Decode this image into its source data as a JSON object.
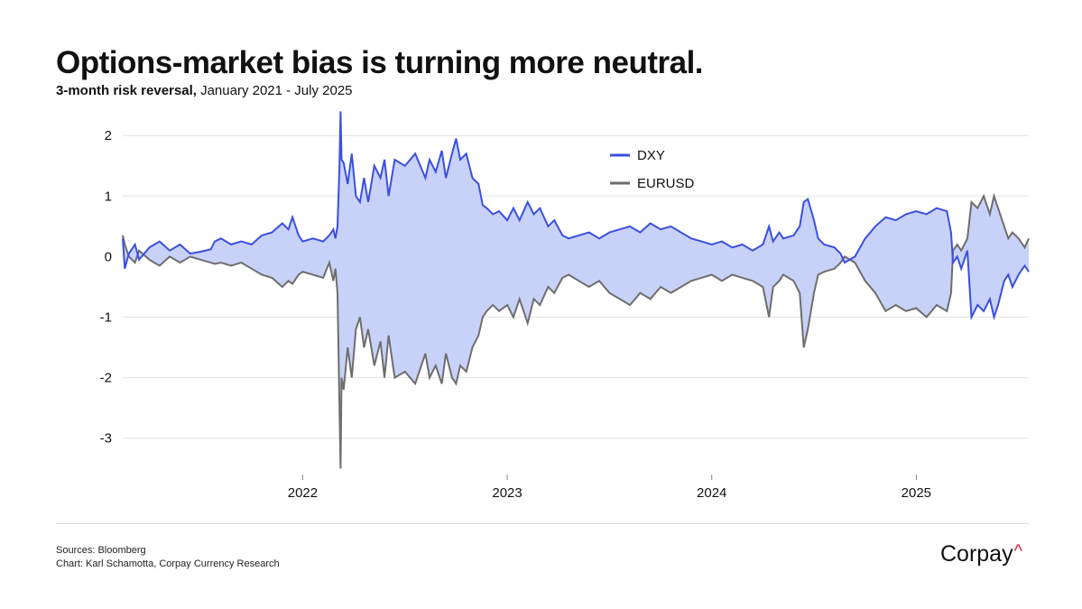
{
  "header": {
    "title": "Options-market bias is turning more neutral.",
    "subtitle_bold": "3-month risk reversal,",
    "subtitle_rest": " January 2021 - July 2025"
  },
  "footer": {
    "sources": "Sources: Bloomberg",
    "credit": "Chart: Karl Schamotta, Corpay Currency Research"
  },
  "logo": {
    "text": "Corpay",
    "mark": "^"
  },
  "colors": {
    "dxy": "#3b4fe0",
    "eurusd": "#6e6e6e",
    "fill": "#c8d2f8",
    "grid": "#e3e3e3"
  },
  "chart_data": {
    "type": "line",
    "title": "Options-market bias is turning more neutral.",
    "subtitle": "3-month risk reversal, January 2021 - July 2025",
    "xlabel": "",
    "ylabel": "",
    "xlim": [
      2021.12,
      2025.55
    ],
    "ylim": [
      -3.6,
      2.45
    ],
    "yticks": [
      2,
      1,
      0,
      -1,
      -2,
      -3
    ],
    "ytick_labels": [
      "2",
      "1",
      "0",
      "-1",
      "-2",
      "-3"
    ],
    "xticks": [
      2022,
      2023,
      2024,
      2025
    ],
    "xtick_labels": [
      "2022",
      "2023",
      "2024",
      "2025"
    ],
    "legend": {
      "position": "top-center",
      "entries": [
        "DXY",
        "EURUSD"
      ]
    },
    "shaded_between_series": true,
    "series": [
      {
        "name": "DXY",
        "points": [
          [
            2021.12,
            0.3
          ],
          [
            2021.13,
            -0.2
          ],
          [
            2021.15,
            0.05
          ],
          [
            2021.18,
            0.2
          ],
          [
            2021.2,
            -0.05
          ],
          [
            2021.25,
            0.15
          ],
          [
            2021.3,
            0.25
          ],
          [
            2021.35,
            0.1
          ],
          [
            2021.4,
            0.2
          ],
          [
            2021.45,
            0.05
          ],
          [
            2021.5,
            0.08
          ],
          [
            2021.55,
            0.12
          ],
          [
            2021.57,
            0.25
          ],
          [
            2021.6,
            0.3
          ],
          [
            2021.65,
            0.2
          ],
          [
            2021.7,
            0.25
          ],
          [
            2021.75,
            0.2
          ],
          [
            2021.8,
            0.35
          ],
          [
            2021.85,
            0.4
          ],
          [
            2021.9,
            0.55
          ],
          [
            2021.93,
            0.45
          ],
          [
            2021.95,
            0.65
          ],
          [
            2021.98,
            0.35
          ],
          [
            2022.0,
            0.25
          ],
          [
            2022.05,
            0.3
          ],
          [
            2022.1,
            0.25
          ],
          [
            2022.13,
            0.35
          ],
          [
            2022.15,
            0.45
          ],
          [
            2022.16,
            0.3
          ],
          [
            2022.17,
            0.5
          ],
          [
            2022.18,
            1.5
          ],
          [
            2022.185,
            2.4
          ],
          [
            2022.19,
            1.6
          ],
          [
            2022.2,
            1.55
          ],
          [
            2022.22,
            1.2
          ],
          [
            2022.24,
            1.7
          ],
          [
            2022.26,
            1.0
          ],
          [
            2022.28,
            0.9
          ],
          [
            2022.3,
            1.3
          ],
          [
            2022.32,
            0.9
          ],
          [
            2022.35,
            1.5
          ],
          [
            2022.38,
            1.3
          ],
          [
            2022.4,
            1.6
          ],
          [
            2022.42,
            1.0
          ],
          [
            2022.45,
            1.6
          ],
          [
            2022.5,
            1.5
          ],
          [
            2022.55,
            1.7
          ],
          [
            2022.6,
            1.3
          ],
          [
            2022.62,
            1.6
          ],
          [
            2022.65,
            1.4
          ],
          [
            2022.68,
            1.75
          ],
          [
            2022.7,
            1.3
          ],
          [
            2022.73,
            1.7
          ],
          [
            2022.75,
            1.95
          ],
          [
            2022.77,
            1.6
          ],
          [
            2022.8,
            1.7
          ],
          [
            2022.83,
            1.3
          ],
          [
            2022.86,
            1.2
          ],
          [
            2022.88,
            0.85
          ],
          [
            2022.9,
            0.8
          ],
          [
            2022.93,
            0.7
          ],
          [
            2022.96,
            0.75
          ],
          [
            2023.0,
            0.6
          ],
          [
            2023.03,
            0.8
          ],
          [
            2023.06,
            0.6
          ],
          [
            2023.1,
            0.9
          ],
          [
            2023.13,
            0.7
          ],
          [
            2023.16,
            0.8
          ],
          [
            2023.2,
            0.5
          ],
          [
            2023.23,
            0.6
          ],
          [
            2023.27,
            0.35
          ],
          [
            2023.3,
            0.3
          ],
          [
            2023.35,
            0.35
          ],
          [
            2023.4,
            0.4
          ],
          [
            2023.45,
            0.3
          ],
          [
            2023.5,
            0.4
          ],
          [
            2023.55,
            0.45
          ],
          [
            2023.6,
            0.5
          ],
          [
            2023.65,
            0.4
          ],
          [
            2023.7,
            0.55
          ],
          [
            2023.75,
            0.45
          ],
          [
            2023.8,
            0.5
          ],
          [
            2023.85,
            0.4
          ],
          [
            2023.9,
            0.3
          ],
          [
            2023.95,
            0.25
          ],
          [
            2024.0,
            0.2
          ],
          [
            2024.05,
            0.25
          ],
          [
            2024.1,
            0.15
          ],
          [
            2024.15,
            0.2
          ],
          [
            2024.2,
            0.1
          ],
          [
            2024.25,
            0.2
          ],
          [
            2024.28,
            0.5
          ],
          [
            2024.3,
            0.25
          ],
          [
            2024.33,
            0.4
          ],
          [
            2024.35,
            0.3
          ],
          [
            2024.4,
            0.35
          ],
          [
            2024.43,
            0.5
          ],
          [
            2024.45,
            0.9
          ],
          [
            2024.47,
            0.95
          ],
          [
            2024.5,
            0.6
          ],
          [
            2024.52,
            0.3
          ],
          [
            2024.55,
            0.2
          ],
          [
            2024.6,
            0.15
          ],
          [
            2024.63,
            0.05
          ],
          [
            2024.65,
            -0.1
          ],
          [
            2024.7,
            0.0
          ],
          [
            2024.75,
            0.3
          ],
          [
            2024.8,
            0.5
          ],
          [
            2024.85,
            0.65
          ],
          [
            2024.9,
            0.6
          ],
          [
            2024.95,
            0.7
          ],
          [
            2025.0,
            0.75
          ],
          [
            2025.05,
            0.7
          ],
          [
            2025.1,
            0.8
          ],
          [
            2025.15,
            0.75
          ],
          [
            2025.17,
            0.4
          ],
          [
            2025.18,
            -0.1
          ],
          [
            2025.2,
            0.0
          ],
          [
            2025.22,
            -0.2
          ],
          [
            2025.25,
            0.1
          ],
          [
            2025.27,
            -1.0
          ],
          [
            2025.3,
            -0.8
          ],
          [
            2025.33,
            -0.9
          ],
          [
            2025.36,
            -0.7
          ],
          [
            2025.38,
            -1.0
          ],
          [
            2025.4,
            -0.8
          ],
          [
            2025.43,
            -0.4
          ],
          [
            2025.45,
            -0.3
          ],
          [
            2025.47,
            -0.5
          ],
          [
            2025.5,
            -0.3
          ],
          [
            2025.53,
            -0.15
          ],
          [
            2025.55,
            -0.25
          ]
        ]
      },
      {
        "name": "EURUSD",
        "points": [
          [
            2021.12,
            0.35
          ],
          [
            2021.13,
            0.2
          ],
          [
            2021.15,
            0.0
          ],
          [
            2021.18,
            -0.1
          ],
          [
            2021.2,
            0.1
          ],
          [
            2021.25,
            -0.05
          ],
          [
            2021.3,
            -0.15
          ],
          [
            2021.35,
            0.0
          ],
          [
            2021.4,
            -0.1
          ],
          [
            2021.45,
            0.0
          ],
          [
            2021.5,
            -0.05
          ],
          [
            2021.55,
            -0.1
          ],
          [
            2021.57,
            -0.12
          ],
          [
            2021.6,
            -0.1
          ],
          [
            2021.65,
            -0.15
          ],
          [
            2021.7,
            -0.1
          ],
          [
            2021.75,
            -0.2
          ],
          [
            2021.8,
            -0.3
          ],
          [
            2021.85,
            -0.35
          ],
          [
            2021.9,
            -0.5
          ],
          [
            2021.93,
            -0.4
          ],
          [
            2021.95,
            -0.45
          ],
          [
            2021.98,
            -0.3
          ],
          [
            2022.0,
            -0.25
          ],
          [
            2022.05,
            -0.3
          ],
          [
            2022.1,
            -0.35
          ],
          [
            2022.13,
            -0.1
          ],
          [
            2022.15,
            -0.4
          ],
          [
            2022.16,
            -0.2
          ],
          [
            2022.17,
            -0.6
          ],
          [
            2022.18,
            -2.5
          ],
          [
            2022.185,
            -3.5
          ],
          [
            2022.19,
            -2.0
          ],
          [
            2022.2,
            -2.2
          ],
          [
            2022.22,
            -1.5
          ],
          [
            2022.24,
            -2.0
          ],
          [
            2022.26,
            -1.2
          ],
          [
            2022.28,
            -1.0
          ],
          [
            2022.3,
            -1.5
          ],
          [
            2022.32,
            -1.2
          ],
          [
            2022.35,
            -1.8
          ],
          [
            2022.38,
            -1.4
          ],
          [
            2022.4,
            -2.0
          ],
          [
            2022.42,
            -1.3
          ],
          [
            2022.45,
            -2.0
          ],
          [
            2022.5,
            -1.9
          ],
          [
            2022.55,
            -2.1
          ],
          [
            2022.6,
            -1.6
          ],
          [
            2022.62,
            -2.0
          ],
          [
            2022.65,
            -1.8
          ],
          [
            2022.68,
            -2.1
          ],
          [
            2022.7,
            -1.6
          ],
          [
            2022.73,
            -2.0
          ],
          [
            2022.75,
            -2.1
          ],
          [
            2022.77,
            -1.8
          ],
          [
            2022.8,
            -1.9
          ],
          [
            2022.83,
            -1.5
          ],
          [
            2022.86,
            -1.3
          ],
          [
            2022.88,
            -1.0
          ],
          [
            2022.9,
            -0.9
          ],
          [
            2022.93,
            -0.8
          ],
          [
            2022.96,
            -0.9
          ],
          [
            2023.0,
            -0.8
          ],
          [
            2023.03,
            -1.0
          ],
          [
            2023.06,
            -0.7
          ],
          [
            2023.1,
            -1.1
          ],
          [
            2023.13,
            -0.7
          ],
          [
            2023.16,
            -0.8
          ],
          [
            2023.2,
            -0.5
          ],
          [
            2023.23,
            -0.6
          ],
          [
            2023.27,
            -0.35
          ],
          [
            2023.3,
            -0.3
          ],
          [
            2023.35,
            -0.4
          ],
          [
            2023.4,
            -0.5
          ],
          [
            2023.45,
            -0.4
          ],
          [
            2023.5,
            -0.6
          ],
          [
            2023.55,
            -0.7
          ],
          [
            2023.6,
            -0.8
          ],
          [
            2023.65,
            -0.6
          ],
          [
            2023.7,
            -0.7
          ],
          [
            2023.75,
            -0.5
          ],
          [
            2023.8,
            -0.6
          ],
          [
            2023.85,
            -0.5
          ],
          [
            2023.9,
            -0.4
          ],
          [
            2023.95,
            -0.35
          ],
          [
            2024.0,
            -0.3
          ],
          [
            2024.05,
            -0.4
          ],
          [
            2024.1,
            -0.3
          ],
          [
            2024.15,
            -0.35
          ],
          [
            2024.2,
            -0.4
          ],
          [
            2024.25,
            -0.5
          ],
          [
            2024.28,
            -1.0
          ],
          [
            2024.3,
            -0.5
          ],
          [
            2024.33,
            -0.4
          ],
          [
            2024.35,
            -0.3
          ],
          [
            2024.4,
            -0.4
          ],
          [
            2024.43,
            -0.6
          ],
          [
            2024.45,
            -1.5
          ],
          [
            2024.47,
            -1.2
          ],
          [
            2024.5,
            -0.6
          ],
          [
            2024.52,
            -0.3
          ],
          [
            2024.55,
            -0.25
          ],
          [
            2024.6,
            -0.2
          ],
          [
            2024.63,
            -0.1
          ],
          [
            2024.65,
            0.0
          ],
          [
            2024.7,
            -0.1
          ],
          [
            2024.75,
            -0.4
          ],
          [
            2024.8,
            -0.6
          ],
          [
            2024.85,
            -0.9
          ],
          [
            2024.9,
            -0.8
          ],
          [
            2024.95,
            -0.9
          ],
          [
            2025.0,
            -0.85
          ],
          [
            2025.05,
            -1.0
          ],
          [
            2025.1,
            -0.8
          ],
          [
            2025.15,
            -0.9
          ],
          [
            2025.17,
            -0.6
          ],
          [
            2025.18,
            0.1
          ],
          [
            2025.2,
            0.2
          ],
          [
            2025.22,
            0.1
          ],
          [
            2025.25,
            0.3
          ],
          [
            2025.27,
            0.9
          ],
          [
            2025.3,
            0.8
          ],
          [
            2025.33,
            1.0
          ],
          [
            2025.36,
            0.7
          ],
          [
            2025.38,
            1.0
          ],
          [
            2025.4,
            0.8
          ],
          [
            2025.43,
            0.5
          ],
          [
            2025.45,
            0.3
          ],
          [
            2025.47,
            0.4
          ],
          [
            2025.5,
            0.3
          ],
          [
            2025.53,
            0.15
          ],
          [
            2025.55,
            0.3
          ]
        ]
      }
    ]
  }
}
